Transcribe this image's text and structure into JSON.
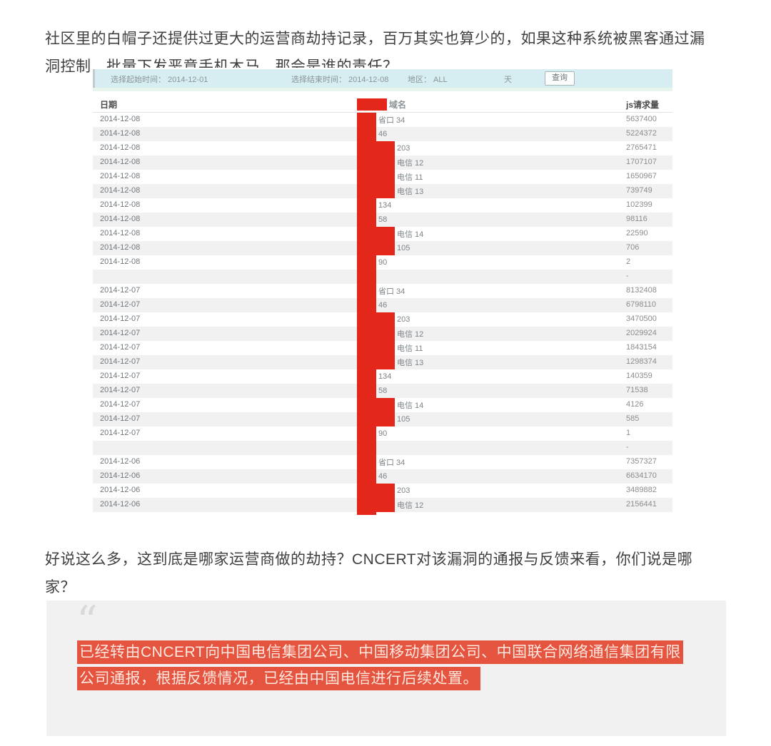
{
  "intro": {
    "line1": "社区里的白帽子还提供过更大的运营商劫持记录，百万其实也算少的，如果这种系统被黑客通过漏",
    "line2": "洞控制，批量下发恶意手机木马，那会是谁的责任？"
  },
  "screenshot": {
    "filter_bar": {
      "start_date_label": "选择起始时间： 2014-12-01",
      "end_date_label": "选择结束时间： 2014-12-08",
      "region_label": "地区： ALL",
      "unit_label": "天",
      "query_button": "查询"
    },
    "table": {
      "headers": {
        "date": "日期",
        "domain_remnant": "域名",
        "requests": "js请求量"
      },
      "rows": [
        {
          "date": "2014-12-08",
          "remnant": "省口 34",
          "value": "5637400",
          "wide": false
        },
        {
          "date": "2014-12-08",
          "remnant": "46",
          "value": "5224372",
          "wide": false
        },
        {
          "date": "2014-12-08",
          "remnant": "203",
          "value": "2765471",
          "wide": true
        },
        {
          "date": "2014-12-08",
          "remnant": "电信 12",
          "value": "1707107",
          "wide": true
        },
        {
          "date": "2014-12-08",
          "remnant": "电信 11",
          "value": "1650967",
          "wide": true
        },
        {
          "date": "2014-12-08",
          "remnant": "电信 13",
          "value": "739749",
          "wide": true
        },
        {
          "date": "2014-12-08",
          "remnant": "134",
          "value": "102399",
          "wide": false
        },
        {
          "date": "2014-12-08",
          "remnant": "58",
          "value": "98116",
          "wide": false
        },
        {
          "date": "2014-12-08",
          "remnant": "电信 14",
          "value": "22590",
          "wide": true
        },
        {
          "date": "2014-12-08",
          "remnant": "105",
          "value": "706",
          "wide": true
        },
        {
          "date": "2014-12-08",
          "remnant": "90",
          "value": "2",
          "wide": false
        },
        {
          "date": "",
          "remnant": "",
          "value": "-",
          "wide": false
        },
        {
          "date": "2014-12-07",
          "remnant": "省口 34",
          "value": "8132408",
          "wide": false
        },
        {
          "date": "2014-12-07",
          "remnant": "46",
          "value": "6798110",
          "wide": false
        },
        {
          "date": "2014-12-07",
          "remnant": "203",
          "value": "3470500",
          "wide": true
        },
        {
          "date": "2014-12-07",
          "remnant": "电信 12",
          "value": "2029924",
          "wide": true
        },
        {
          "date": "2014-12-07",
          "remnant": "电信 11",
          "value": "1843154",
          "wide": true
        },
        {
          "date": "2014-12-07",
          "remnant": "电信 13",
          "value": "1298374",
          "wide": true
        },
        {
          "date": "2014-12-07",
          "remnant": "134",
          "value": "140359",
          "wide": false
        },
        {
          "date": "2014-12-07",
          "remnant": "58",
          "value": "71538",
          "wide": false
        },
        {
          "date": "2014-12-07",
          "remnant": "电信 14",
          "value": "4126",
          "wide": true
        },
        {
          "date": "2014-12-07",
          "remnant": "105",
          "value": "585",
          "wide": true
        },
        {
          "date": "2014-12-07",
          "remnant": "90",
          "value": "1",
          "wide": false
        },
        {
          "date": "",
          "remnant": "",
          "value": "-",
          "wide": false
        },
        {
          "date": "2014-12-06",
          "remnant": "省口 34",
          "value": "7357327",
          "wide": false
        },
        {
          "date": "2014-12-06",
          "remnant": "46",
          "value": "6634170",
          "wide": false
        },
        {
          "date": "2014-12-06",
          "remnant": "203",
          "value": "3489882",
          "wide": true
        },
        {
          "date": "2014-12-06",
          "remnant": "电信 12",
          "value": "2156441",
          "wide": true
        }
      ]
    },
    "colors": {
      "redaction": "#e4271b",
      "filter_bar_bg": "#d6eef1",
      "row_stripe": "#f1f1f1"
    }
  },
  "question": {
    "line1": "好说这么多，这到底是哪家运营商做的劫持？CNCERT对该漏洞的通报与反馈来看，你们说是哪",
    "line2": "家？"
  },
  "quote": {
    "glyph": "“",
    "line1": "已经转由CNCERT向中国电信集团公司、中国移动集团公司、中国联合网络通信集团有限",
    "line2": "公司通报，根据反馈情况，已经由中国电信进行后续处置。",
    "highlight_bg": "#e5543e",
    "quote_bg": "#f1f1f2"
  }
}
